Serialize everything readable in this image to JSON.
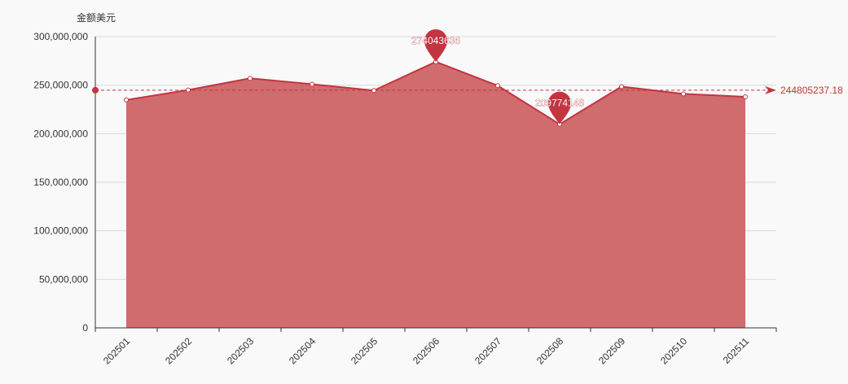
{
  "chart_data": {
    "type": "area",
    "ylabel": "金额美元",
    "categories": [
      "202501",
      "202502",
      "202503",
      "202504",
      "202505",
      "202506",
      "202507",
      "202508",
      "202509",
      "202510",
      "202511"
    ],
    "series": [
      {
        "values": [
          234800000,
          245000000,
          257000000,
          251000000,
          244500000,
          274043636,
          249500000,
          209774148,
          248500000,
          241000000,
          238000000
        ]
      }
    ],
    "ylim": [
      0,
      300000000
    ],
    "yticks": [
      "0",
      "50,000,000",
      "100,000,000",
      "150,000,000",
      "200,000,000",
      "250,000,000",
      "300,000,000"
    ],
    "ytick_values": [
      0,
      50000000,
      100000000,
      150000000,
      200000000,
      250000000,
      300000000
    ],
    "mark_points": [
      {
        "label": "274043636",
        "index": 5,
        "value": 274043636
      },
      {
        "label": "209774148",
        "index": 7,
        "value": 209774148
      }
    ],
    "mark_line": {
      "label": "244805237.18",
      "value": 244805237.18
    },
    "grid": true,
    "colors": {
      "area": "#d06b6e",
      "line": "#c23541",
      "pin": "#c23541",
      "grid": "#d9d9d9",
      "axis": "#333333"
    }
  }
}
